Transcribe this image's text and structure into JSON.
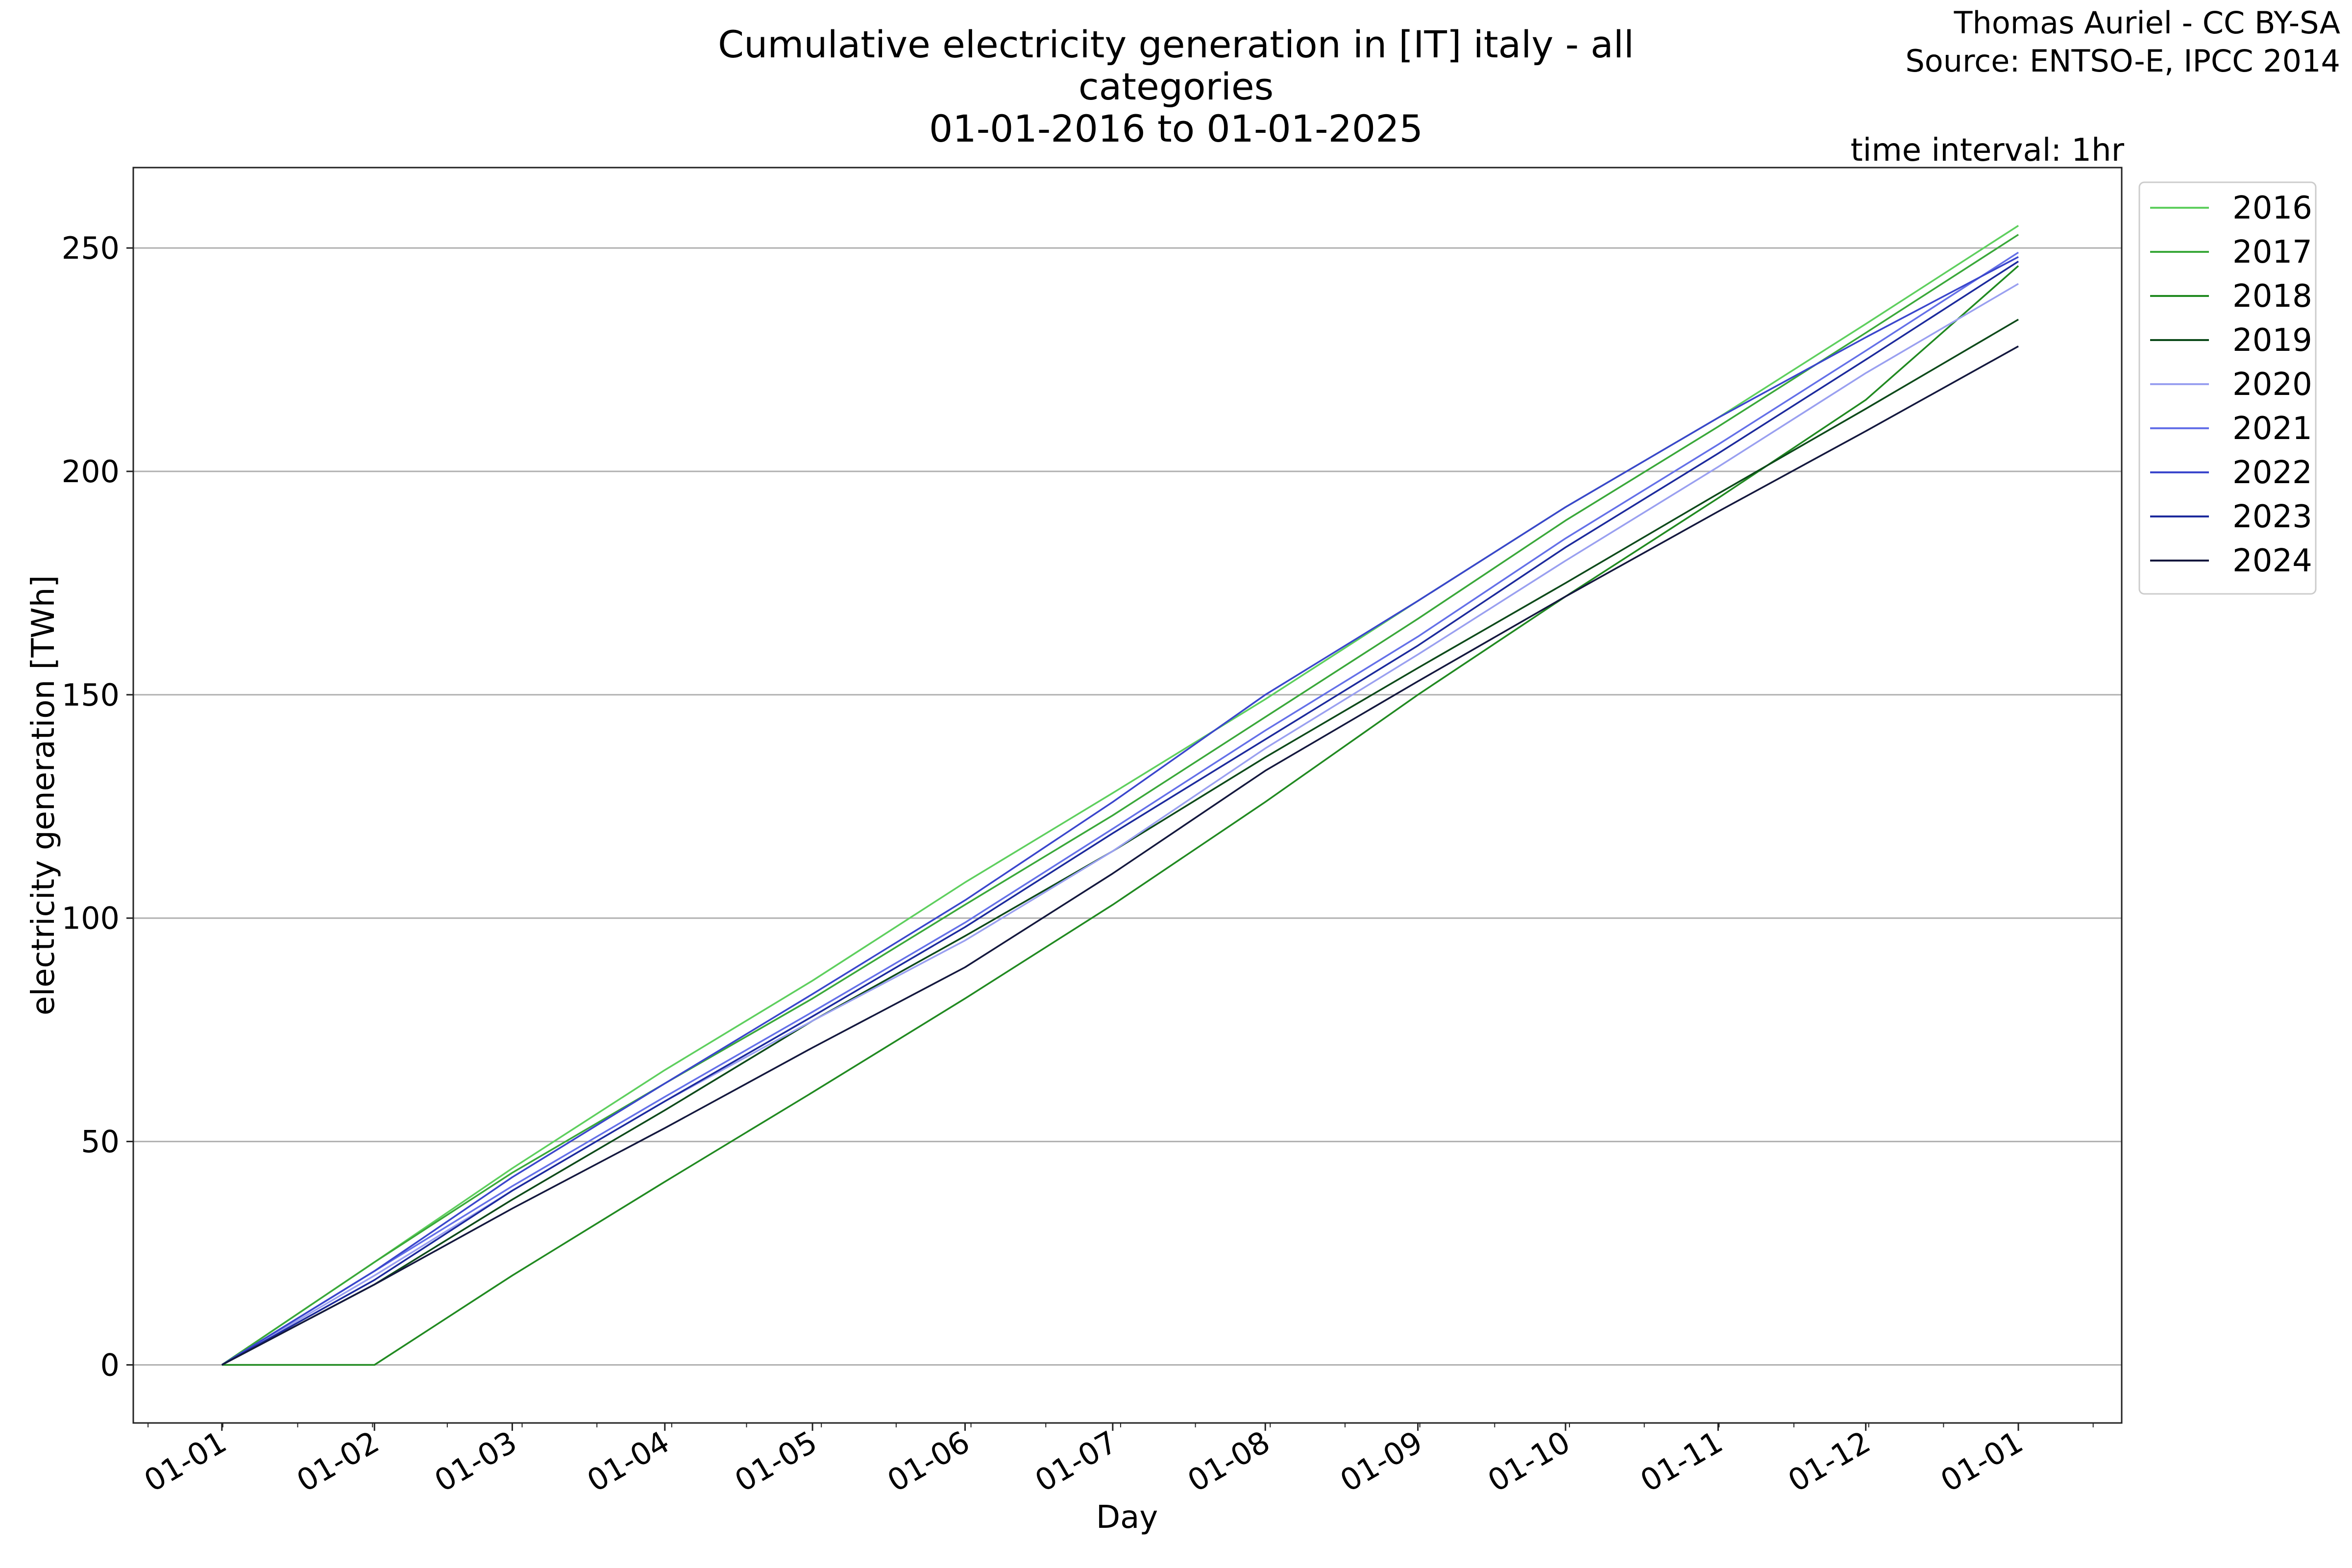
{
  "title": "Cumulative electricity generation in [IT] italy - all categories",
  "subtitle": "01-01-2016 to 01-01-2025",
  "credit_author": "Thomas Auriel - CC BY-SA",
  "credit_source": "Source: ENTSO-E, IPCC 2014",
  "time_interval": "time interval: 1hr",
  "chart_data": {
    "type": "line",
    "title": "Cumulative electricity generation in [IT] italy - all categories",
    "subtitle": "01-01-2016 to 01-01-2025",
    "xlabel": "Day",
    "ylabel": "electricity generation [TWh]",
    "x_ticks": [
      "01-01",
      "01-02",
      "01-03",
      "01-04",
      "01-05",
      "01-06",
      "01-07",
      "01-08",
      "01-09",
      "01-10",
      "01-11",
      "01-12",
      "01-01"
    ],
    "x_tick_days": [
      0,
      31,
      59,
      90,
      120,
      151,
      181,
      212,
      243,
      273,
      304,
      334,
      365
    ],
    "xlim_days": [
      -18,
      386
    ],
    "y_ticks": [
      0,
      50,
      100,
      150,
      200,
      250
    ],
    "ylim": [
      -13,
      268
    ],
    "grid": "horizontal",
    "legend_position": "right-outside-top",
    "x": [
      0,
      31,
      59,
      90,
      120,
      151,
      181,
      212,
      243,
      273,
      304,
      334,
      365
    ],
    "series": [
      {
        "name": "2016",
        "color": "#5ecf5e",
        "values": [
          0,
          23,
          44,
          66,
          86,
          108,
          128,
          149,
          171,
          192,
          212,
          233,
          255
        ]
      },
      {
        "name": "2017",
        "color": "#3aa83a",
        "values": [
          0,
          23,
          43,
          63,
          82,
          103,
          123,
          145,
          167,
          189,
          210,
          231,
          253
        ]
      },
      {
        "name": "2018",
        "color": "#218a21",
        "values": [
          0,
          0,
          20,
          41,
          61,
          82,
          103,
          126,
          150,
          172,
          194,
          216,
          246
        ]
      },
      {
        "name": "2019",
        "color": "#0d4a1a",
        "values": [
          0,
          18,
          37,
          57,
          77,
          96,
          115,
          136,
          156,
          175,
          195,
          214,
          234
        ]
      },
      {
        "name": "2020",
        "color": "#9aa0f0",
        "values": [
          0,
          20,
          39,
          59,
          77,
          95,
          115,
          138,
          159,
          180,
          201,
          222,
          242
        ]
      },
      {
        "name": "2021",
        "color": "#6470e8",
        "values": [
          0,
          21,
          40,
          60,
          79,
          99,
          120,
          142,
          163,
          185,
          206,
          227,
          249
        ]
      },
      {
        "name": "2022",
        "color": "#3a46cc",
        "values": [
          0,
          21,
          42,
          63,
          83,
          104,
          126,
          150,
          171,
          192,
          212,
          230,
          248
        ]
      },
      {
        "name": "2023",
        "color": "#1c2a9c",
        "values": [
          0,
          19,
          39,
          59,
          78,
          98,
          119,
          140,
          161,
          183,
          204,
          225,
          247
        ]
      },
      {
        "name": "2024",
        "color": "#14183e",
        "values": [
          0,
          18,
          35,
          53,
          71,
          89,
          110,
          133,
          153,
          172,
          191,
          209,
          228
        ]
      }
    ]
  }
}
